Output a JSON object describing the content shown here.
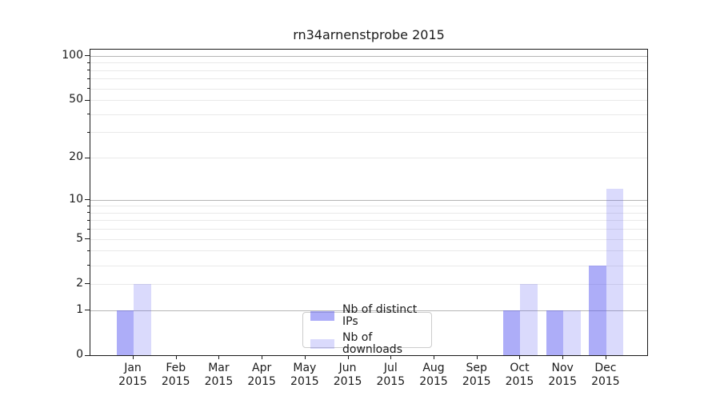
{
  "title": "rn34arnenstprobe 2015",
  "colors": {
    "bar_distinct_ips": "rgba(88,88,240,0.49)",
    "bar_downloads": "rgba(88,88,240,0.22)",
    "grid_major": "#b5b5b5",
    "grid_minor": "#e9e9e9",
    "axis": "#1a1a1a",
    "legend_border": "#cccccc"
  },
  "legend": {
    "items": [
      {
        "label": "Nb of distinct IPs",
        "color": "rgba(88,88,240,0.49)"
      },
      {
        "label": "Nb of downloads",
        "color": "rgba(88,88,240,0.22)"
      }
    ]
  },
  "chart_data": {
    "type": "bar",
    "title": "rn34arnenstprobe 2015",
    "categories": [
      "Jan 2015",
      "Feb 2015",
      "Mar 2015",
      "Apr 2015",
      "May 2015",
      "Jun 2015",
      "Jul 2015",
      "Aug 2015",
      "Sep 2015",
      "Oct 2015",
      "Nov 2015",
      "Dec 2015"
    ],
    "series": [
      {
        "name": "Nb of distinct IPs",
        "color": "rgba(88,88,240,0.49)",
        "values": [
          1,
          0,
          0,
          0,
          0,
          0,
          0,
          0,
          0,
          1,
          1,
          3
        ]
      },
      {
        "name": "Nb of downloads",
        "color": "rgba(88,88,240,0.22)",
        "values": [
          2,
          0,
          0,
          0,
          0,
          0,
          0,
          0,
          0,
          2,
          1,
          12
        ]
      }
    ],
    "y_scale": "log1p",
    "ylim": [
      0,
      110
    ],
    "y_ticks_labeled": [
      0,
      1,
      2,
      5,
      10,
      20,
      50,
      100
    ],
    "y_major_grid": [
      1,
      10,
      100
    ],
    "y_minor_grid": [
      2,
      3,
      4,
      5,
      6,
      7,
      8,
      9,
      20,
      30,
      40,
      50,
      60,
      70,
      80,
      90
    ],
    "grid": true,
    "legend_position": "lower center",
    "xlabel": "",
    "ylabel": ""
  }
}
